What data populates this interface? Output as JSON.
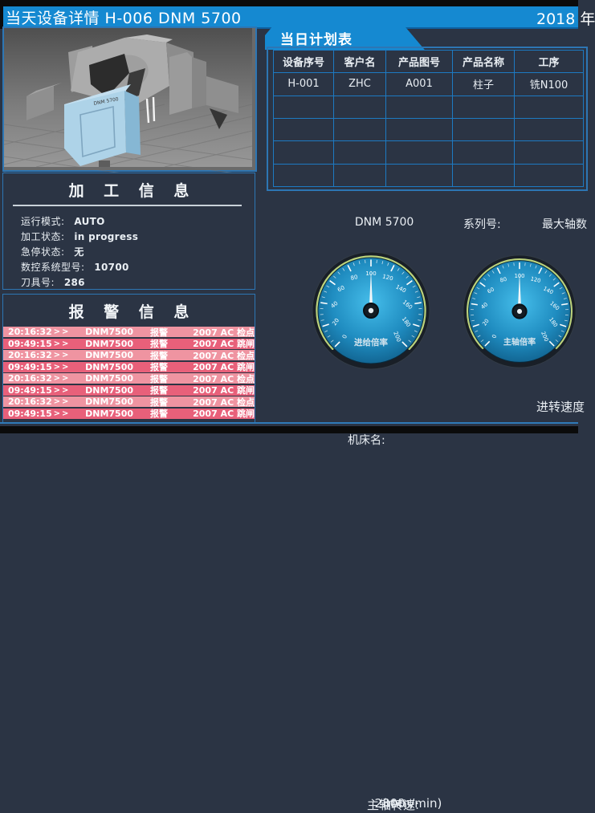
{
  "header": {
    "title": "当天设备详情  H-006   DNM 5700",
    "date": "2018 年"
  },
  "machine_image": {
    "label": "DNM 5700"
  },
  "processing_info": {
    "title": "加 工 信 息",
    "fields": [
      {
        "label": "运行模式:",
        "value": "AUTO"
      },
      {
        "label": "加工状态:",
        "value": "in progress"
      },
      {
        "label": "急停状态:",
        "value": "无"
      },
      {
        "label": "数控系统型号:",
        "value": "10700"
      },
      {
        "label": "刀具号:",
        "value": "286"
      }
    ]
  },
  "alarm_info": {
    "title": "报 警 信 息",
    "rows": [
      {
        "time": "20:16:32",
        "sep": ">>",
        "device": "DNM7500",
        "type": "报警",
        "detail": "2007  AC 检点"
      },
      {
        "time": "09:49:15",
        "sep": ">>",
        "device": "DNM7500",
        "type": "报警",
        "detail": "2007  AC 跳闸"
      },
      {
        "time": "20:16:32",
        "sep": ">>",
        "device": "DNM7500",
        "type": "报警",
        "detail": "2007  AC 检点"
      },
      {
        "time": "09:49:15",
        "sep": ">>",
        "device": "DNM7500",
        "type": "报警",
        "detail": "2007  AC 跳闸"
      },
      {
        "time": "20:16:32",
        "sep": ">>",
        "device": "DNM7500",
        "type": "报警",
        "detail": "2007  AC 检点"
      },
      {
        "time": "09:49:15",
        "sep": ">>",
        "device": "DNM7500",
        "type": "报警",
        "detail": "2007  AC 跳闸"
      },
      {
        "time": "20:16:32",
        "sep": ">>",
        "device": "DNM7500",
        "type": "报警",
        "detail": "2007  AC 检点"
      },
      {
        "time": "09:49:15",
        "sep": ">>",
        "device": "DNM7500",
        "type": "报警",
        "detail": "2007  AC 跳闸"
      }
    ]
  },
  "plan_table": {
    "tab_title": "当日计划表",
    "headers": [
      "设备序号",
      "客户名",
      "产品图号",
      "产品名称",
      "工序"
    ],
    "rows": [
      [
        "H-001",
        "ZHC",
        "A001",
        "柱子",
        "铣N100"
      ],
      [
        "",
        "",
        "",
        "",
        ""
      ],
      [
        "",
        "",
        "",
        "",
        ""
      ],
      [
        "",
        "",
        "",
        "",
        ""
      ],
      [
        "",
        "",
        "",
        "",
        ""
      ]
    ]
  },
  "machine_meta": {
    "name_label": "机床名:",
    "name_value": "DNM 5700",
    "serial_label": "系列号:",
    "max_axes_label": "最大轴数"
  },
  "gauges": [
    {
      "label": "进给倍率",
      "min": 0,
      "max": 200,
      "major_step": 20,
      "minor_step": 5,
      "value": 100
    },
    {
      "label": "主轴倍率",
      "min": 0,
      "max": 200,
      "major_step": 20,
      "minor_step": 5,
      "value": 100
    }
  ],
  "footer": {
    "spindle_label": "主轴转速:",
    "spindle_value": "2300",
    "spindle_unit": "(mm/min)",
    "feed_label": "进转速度"
  },
  "colors": {
    "header_blue": "#1589d1",
    "panel_border": "#2d76b4",
    "table_grid": "#1d7ac2",
    "alarm_row_light": "#ef94a1",
    "alarm_row_dark": "#e8607a",
    "gauge_arc_green": "#bcd37c",
    "gauge_center": "#45bdea",
    "gauge_edge": "#0c547e",
    "background": "#2b3444"
  }
}
